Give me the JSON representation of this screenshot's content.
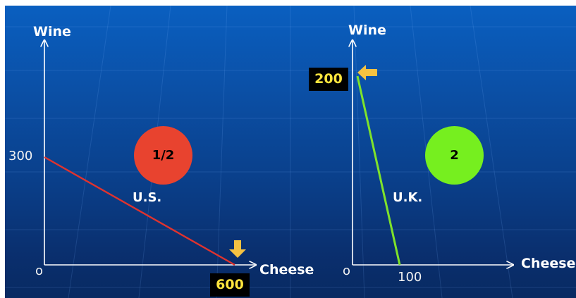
{
  "colors": {
    "us_line": "#e0332e",
    "uk_line": "#7fe32a",
    "us_circle": "#e8432f",
    "uk_circle": "#76ef1f",
    "arrow": "#f5c242",
    "badge_text": "#ffe53d"
  },
  "chart_data": [
    {
      "type": "line",
      "xlabel": "Cheese",
      "ylabel": "Wine",
      "origin_label": "o",
      "series": [
        {
          "name": "U.S.",
          "x": [
            0,
            600
          ],
          "y": [
            300,
            0
          ]
        }
      ],
      "labels": {
        "y_intercept": "300",
        "x_intercept": "600",
        "slope": "1/2",
        "country": "U.S."
      },
      "highlight": "x_intercept"
    },
    {
      "type": "line",
      "xlabel": "Cheese",
      "ylabel": "Wine",
      "origin_label": "o",
      "series": [
        {
          "name": "U.K.",
          "x": [
            0,
            100
          ],
          "y": [
            200,
            0
          ]
        }
      ],
      "labels": {
        "y_intercept": "200",
        "x_intercept": "100",
        "slope": "2",
        "country": "U.K."
      },
      "highlight": "y_intercept"
    }
  ]
}
